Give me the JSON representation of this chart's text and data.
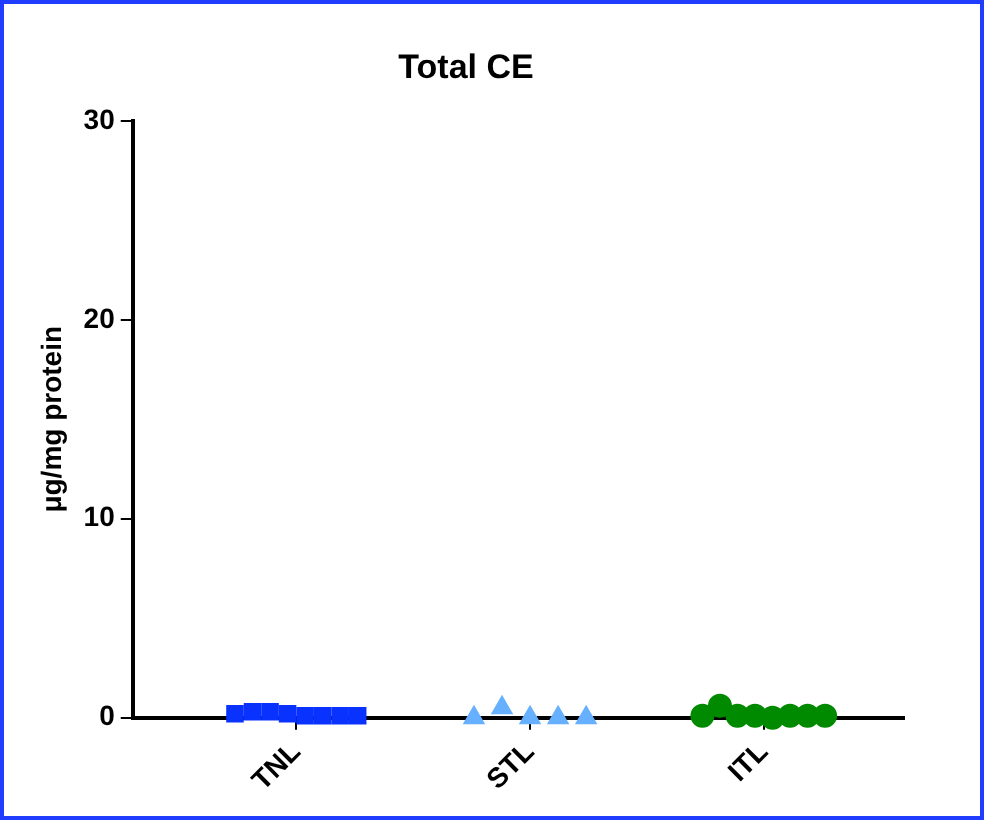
{
  "chart_data": {
    "type": "scatter",
    "title": "Total CE",
    "ylabel": "μg/mg protein",
    "categories": [
      "TNL",
      "STL",
      "ITL"
    ],
    "ylim": [
      0,
      30
    ],
    "yticks": [
      0,
      10,
      20,
      30
    ],
    "grid": false,
    "legend": false,
    "series": [
      {
        "marker": "square",
        "color": "#0a32ff",
        "x": [
          "TNL",
          "TNL",
          "TNL",
          "TNL",
          "TNL",
          "TNL",
          "TNL",
          "TNL"
        ],
        "values": [
          0.2,
          0.3,
          0.3,
          0.2,
          0.1,
          0.1,
          0.1,
          0.1
        ]
      },
      {
        "marker": "triangle",
        "color": "#66b0ff",
        "x": [
          "STL",
          "STL",
          "STL",
          "STL",
          "STL"
        ],
        "values": [
          0,
          0.5,
          0,
          0,
          0
        ]
      },
      {
        "marker": "circle",
        "color": "#008a00",
        "x": [
          "ITL",
          "ITL",
          "ITL",
          "ITL",
          "ITL",
          "ITL",
          "ITL",
          "ITL"
        ],
        "values": [
          0.1,
          0.6,
          0.1,
          0.1,
          0,
          0.1,
          0.1,
          0.1
        ]
      }
    ]
  }
}
